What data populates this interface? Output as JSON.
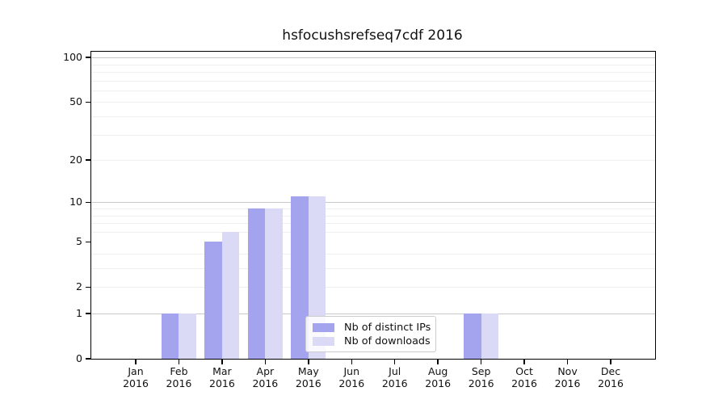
{
  "title": "hsfocushsrefseq7cdf 2016",
  "legend": {
    "items": [
      {
        "label": "Nb of distinct IPs",
        "color": "#a3a3ee"
      },
      {
        "label": "Nb of downloads",
        "color": "#dadaf6"
      }
    ]
  },
  "chart_data": {
    "type": "bar",
    "title": "hsfocushsrefseq7cdf 2016",
    "categories": [
      "Jan",
      "Feb",
      "Mar",
      "Apr",
      "May",
      "Jun",
      "Jul",
      "Aug",
      "Sep",
      "Oct",
      "Nov",
      "Dec"
    ],
    "x_year_label": "2016",
    "series": [
      {
        "name": "Nb of distinct IPs",
        "color": "#a3a3ee",
        "values": [
          0,
          1,
          5,
          9,
          11,
          0,
          0,
          0,
          1,
          0,
          0,
          0
        ]
      },
      {
        "name": "Nb of downloads",
        "color": "#dadaf6",
        "values": [
          0,
          1,
          6,
          9,
          11,
          0,
          0,
          0,
          1,
          0,
          0,
          0
        ]
      }
    ],
    "yscale": "log10(1+y)",
    "ylim": [
      0,
      110
    ],
    "ytick_values": [
      0,
      1,
      2,
      5,
      10,
      20,
      50,
      100
    ],
    "ytick_major_gridlines": [
      1,
      10,
      100
    ],
    "ytick_minor_gridlines": [
      2,
      3,
      4,
      6,
      7,
      8,
      9,
      20,
      30,
      40,
      50,
      60,
      70,
      80,
      90
    ],
    "grid": "horizontal",
    "legend_position": "lower center",
    "axis_color": "#000000",
    "grid_major_color": "#c8c8c8",
    "grid_minor_color": "#efefef",
    "background_color": "#ffffff"
  }
}
